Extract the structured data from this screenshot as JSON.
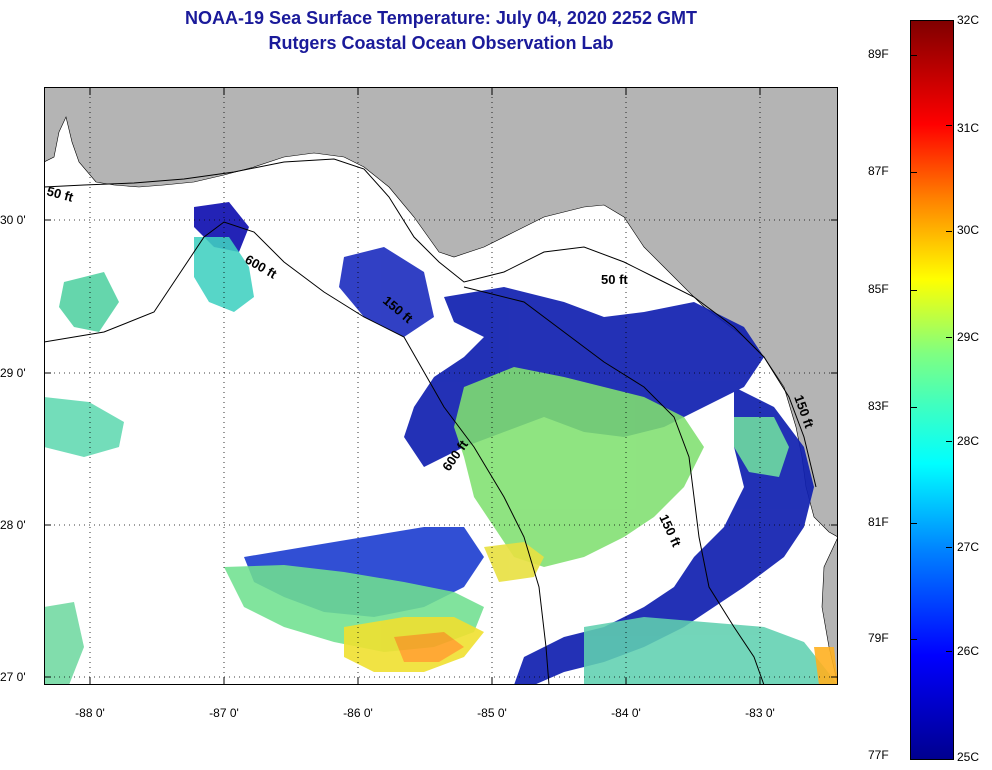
{
  "title": "NOAA-19 Sea Surface Temperature:  July 04, 2020 2252 GMT",
  "subtitle": "Rutgers Coastal Ocean Observation Lab",
  "map": {
    "lat_labels": [
      "30 0'",
      "29 0'",
      "28 0'",
      "27 0'"
    ],
    "lon_labels": [
      "-88 0'",
      "-87 0'",
      "-86 0'",
      "-85 0'",
      "-84 0'",
      "-83 0'"
    ],
    "contour_labels": [
      "50 ft",
      "600 ft",
      "150 ft",
      "600 ft",
      "50 ft",
      "150 ft",
      "150 ft"
    ],
    "land_color": "#b4b4b4",
    "nodata_color": "#ffffff"
  },
  "colorbar": {
    "celsius_labels": [
      "32C",
      "31C",
      "30C",
      "29C",
      "28C",
      "27C",
      "26C",
      "25C"
    ],
    "fahrenheit_labels": [
      "89F",
      "87F",
      "85F",
      "83F",
      "81F",
      "79F",
      "77F"
    ]
  }
}
